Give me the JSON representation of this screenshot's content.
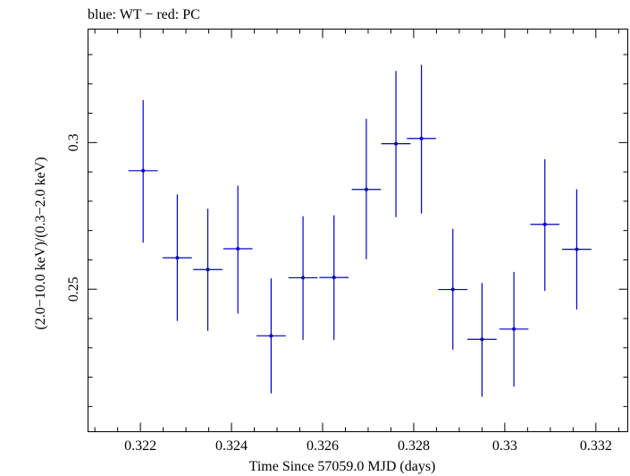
{
  "header": {
    "title": "blue: WT − red: PC"
  },
  "chart_data": {
    "type": "scatter",
    "title": "blue: WT − red: PC",
    "xlabel": "Time Since 57059.0 MJD (days)",
    "ylabel": "(2.0−10.0 keV)/(0.3−2.0 keV)",
    "xlim": [
      0.32085,
      0.3327
    ],
    "ylim": [
      0.2014,
      0.3387
    ],
    "grid": false,
    "color": "#0000cc",
    "x_ticks": [
      {
        "value": 0.322,
        "label": "0.322"
      },
      {
        "value": 0.324,
        "label": "0.324"
      },
      {
        "value": 0.326,
        "label": "0.326"
      },
      {
        "value": 0.328,
        "label": "0.328"
      },
      {
        "value": 0.33,
        "label": "0.33"
      },
      {
        "value": 0.332,
        "label": "0.332"
      }
    ],
    "y_ticks": [
      {
        "value": 0.25,
        "label": "0.25"
      },
      {
        "value": 0.3,
        "label": "0.3"
      }
    ],
    "series": [
      {
        "points": [
          {
            "x": 0.32206,
            "xerr": 0.00032,
            "y": 0.2904,
            "ylo": 0.2659,
            "yhi": 0.3145
          },
          {
            "x": 0.32281,
            "xerr": 0.00032,
            "y": 0.2607,
            "ylo": 0.2392,
            "yhi": 0.2823
          },
          {
            "x": 0.32348,
            "xerr": 0.00032,
            "y": 0.2567,
            "ylo": 0.2358,
            "yhi": 0.2774
          },
          {
            "x": 0.32414,
            "xerr": 0.00032,
            "y": 0.2638,
            "ylo": 0.2417,
            "yhi": 0.2853
          },
          {
            "x": 0.32487,
            "xerr": 0.00032,
            "y": 0.2341,
            "ylo": 0.2145,
            "yhi": 0.2537
          },
          {
            "x": 0.32557,
            "xerr": 0.00032,
            "y": 0.2539,
            "ylo": 0.2327,
            "yhi": 0.2749
          },
          {
            "x": 0.32625,
            "xerr": 0.00032,
            "y": 0.254,
            "ylo": 0.2327,
            "yhi": 0.2752
          },
          {
            "x": 0.32696,
            "xerr": 0.00032,
            "y": 0.284,
            "ylo": 0.2602,
            "yhi": 0.3081
          },
          {
            "x": 0.32761,
            "xerr": 0.00032,
            "y": 0.2996,
            "ylo": 0.2746,
            "yhi": 0.3244
          },
          {
            "x": 0.32817,
            "xerr": 0.00032,
            "y": 0.3014,
            "ylo": 0.2758,
            "yhi": 0.3265
          },
          {
            "x": 0.32886,
            "xerr": 0.00032,
            "y": 0.2499,
            "ylo": 0.2294,
            "yhi": 0.2706
          },
          {
            "x": 0.3295,
            "xerr": 0.00032,
            "y": 0.2329,
            "ylo": 0.2133,
            "yhi": 0.2521
          },
          {
            "x": 0.3302,
            "xerr": 0.00032,
            "y": 0.2364,
            "ylo": 0.2168,
            "yhi": 0.2559
          },
          {
            "x": 0.33088,
            "xerr": 0.00032,
            "y": 0.2721,
            "ylo": 0.2494,
            "yhi": 0.2943
          },
          {
            "x": 0.33158,
            "xerr": 0.00032,
            "y": 0.2636,
            "ylo": 0.2431,
            "yhi": 0.2841
          }
        ]
      }
    ]
  }
}
